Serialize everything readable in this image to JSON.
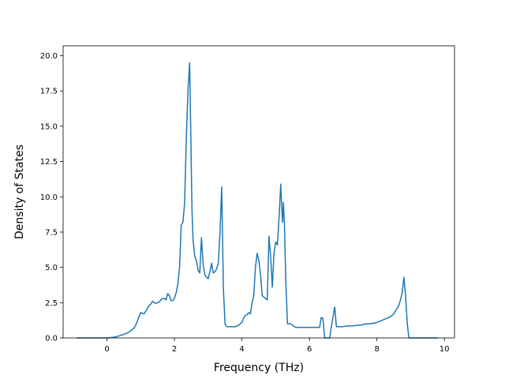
{
  "chart_data": {
    "type": "line",
    "title": "",
    "xlabel": "Frequency (THz)",
    "ylabel": "Density of States",
    "xlim": [
      -1.3,
      10.3
    ],
    "ylim": [
      0,
      20.7
    ],
    "xticks": [
      0,
      2,
      4,
      6,
      8,
      10
    ],
    "xtick_labels": [
      "0",
      "2",
      "4",
      "6",
      "8",
      "10"
    ],
    "yticks": [
      0,
      2.5,
      5,
      7.5,
      10,
      12.5,
      15,
      17.5,
      20
    ],
    "ytick_labels": [
      "0.0",
      "2.5",
      "5.0",
      "7.5",
      "10.0",
      "12.5",
      "15.0",
      "17.5",
      "20.0"
    ],
    "grid": false,
    "legend": "none",
    "line_color": "#1f77b4",
    "series": [
      {
        "x": [
          -0.9,
          -0.6,
          -0.3,
          0.0,
          0.2,
          0.3,
          0.4,
          0.5,
          0.6,
          0.7,
          0.8,
          0.85,
          0.9,
          0.95,
          1.0,
          1.05,
          1.1,
          1.15,
          1.2,
          1.25,
          1.3,
          1.35,
          1.4,
          1.45,
          1.5,
          1.55,
          1.6,
          1.65,
          1.7,
          1.75,
          1.8,
          1.85,
          1.9,
          1.95,
          2.0,
          2.05,
          2.1,
          2.15,
          2.2,
          2.25,
          2.3,
          2.35,
          2.4,
          2.45,
          2.5,
          2.52,
          2.55,
          2.6,
          2.65,
          2.7,
          2.75,
          2.8,
          2.85,
          2.9,
          2.95,
          3.0,
          3.05,
          3.1,
          3.15,
          3.2,
          3.25,
          3.3,
          3.35,
          3.4,
          3.45,
          3.5,
          3.53,
          3.56,
          3.6,
          3.65,
          3.7,
          3.8,
          3.9,
          4.0,
          4.05,
          4.1,
          4.15,
          4.2,
          4.25,
          4.3,
          4.35,
          4.4,
          4.45,
          4.5,
          4.55,
          4.6,
          4.65,
          4.7,
          4.75,
          4.8,
          4.85,
          4.9,
          4.95,
          5.0,
          5.05,
          5.1,
          5.15,
          5.2,
          5.23,
          5.26,
          5.3,
          5.35,
          5.4,
          5.45,
          5.5,
          5.55,
          5.6,
          5.7,
          5.8,
          5.9,
          6.0,
          6.1,
          6.2,
          6.3,
          6.35,
          6.4,
          6.45,
          6.5,
          6.6,
          6.65,
          6.7,
          6.75,
          6.8,
          6.9,
          7.0,
          7.1,
          7.2,
          7.3,
          7.4,
          7.5,
          7.6,
          7.7,
          7.8,
          7.9,
          8.0,
          8.1,
          8.2,
          8.3,
          8.35,
          8.4,
          8.45,
          8.5,
          8.55,
          8.6,
          8.65,
          8.7,
          8.75,
          8.8,
          8.85,
          8.9,
          8.95,
          9.0,
          9.2,
          9.5,
          9.8
        ],
        "y": [
          0.0,
          0.0,
          0.0,
          0.0,
          0.05,
          0.1,
          0.18,
          0.25,
          0.35,
          0.5,
          0.7,
          0.9,
          1.2,
          1.5,
          1.8,
          1.75,
          1.7,
          1.9,
          2.1,
          2.3,
          2.4,
          2.6,
          2.5,
          2.45,
          2.5,
          2.55,
          2.7,
          2.8,
          2.8,
          2.7,
          3.15,
          3.0,
          2.65,
          2.65,
          2.8,
          3.2,
          3.8,
          5.0,
          8.0,
          8.2,
          9.5,
          14.0,
          17.5,
          19.5,
          12.0,
          9.0,
          7.0,
          5.8,
          5.5,
          4.8,
          4.6,
          7.1,
          5.2,
          4.5,
          4.3,
          4.2,
          4.7,
          5.3,
          4.6,
          4.7,
          4.9,
          5.3,
          7.5,
          10.7,
          3.5,
          1.0,
          0.85,
          0.8,
          0.8,
          0.8,
          0.8,
          0.8,
          0.9,
          1.1,
          1.4,
          1.6,
          1.65,
          1.8,
          1.7,
          2.5,
          3.0,
          5.0,
          6.0,
          5.5,
          4.5,
          3.0,
          2.9,
          2.8,
          2.7,
          7.2,
          5.8,
          3.6,
          6.0,
          6.8,
          6.6,
          8.5,
          10.9,
          8.2,
          9.6,
          8.0,
          4.0,
          1.0,
          1.0,
          1.0,
          0.9,
          0.8,
          0.75,
          0.75,
          0.75,
          0.75,
          0.75,
          0.75,
          0.75,
          0.75,
          1.45,
          1.4,
          0.0,
          0.0,
          0.0,
          0.8,
          1.5,
          2.2,
          0.8,
          0.8,
          0.8,
          0.85,
          0.85,
          0.85,
          0.9,
          0.9,
          0.95,
          1.0,
          1.0,
          1.05,
          1.1,
          1.2,
          1.3,
          1.4,
          1.45,
          1.5,
          1.6,
          1.7,
          1.9,
          2.1,
          2.3,
          2.7,
          3.2,
          4.3,
          3.0,
          1.0,
          0.0,
          0.0,
          0.0,
          0.0,
          0.0
        ]
      }
    ]
  }
}
